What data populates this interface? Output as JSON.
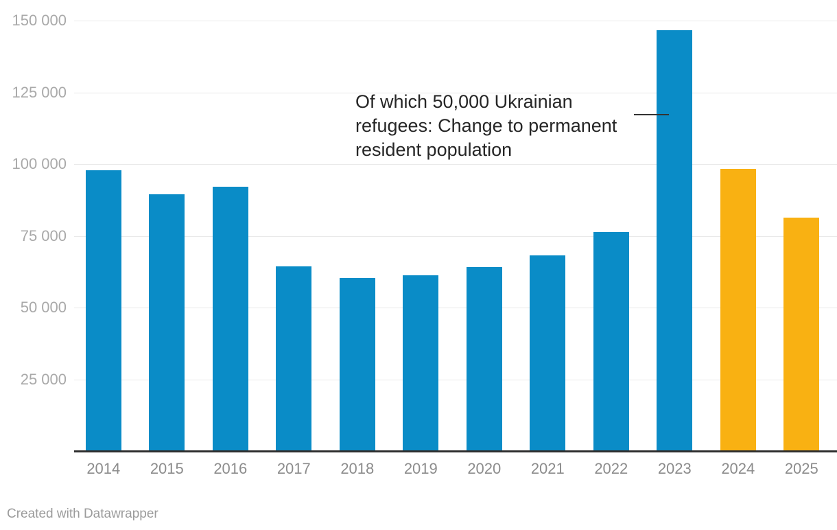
{
  "chart_data": {
    "type": "bar",
    "title": "",
    "xlabel": "",
    "ylabel": "",
    "categories": [
      "2014",
      "2015",
      "2016",
      "2017",
      "2018",
      "2019",
      "2020",
      "2021",
      "2022",
      "2023",
      "2024",
      "2025"
    ],
    "values": [
      97800,
      89400,
      92100,
      64300,
      60400,
      61200,
      64100,
      68100,
      76300,
      146700,
      98300,
      81300
    ],
    "ylim": [
      0,
      150000
    ],
    "yticks": [
      150000,
      125000,
      100000,
      75000,
      50000,
      25000
    ],
    "ytick_labels": [
      "150 000",
      "125 000",
      "100 000",
      "75 000",
      "50 000",
      "25 000"
    ],
    "grid": true,
    "legend": "none",
    "highlight_categories": [
      "2024",
      "2025"
    ],
    "colors": {
      "bar_default": "#0a8cc7",
      "bar_highlight": "#f9b112",
      "gridline": "#e9e9e9",
      "baseline": "#2e2e2e",
      "ytick_text": "#a9a9a9",
      "xtick_text": "#8c8c8c",
      "annotation_text": "#262626",
      "connector": "#333333",
      "credit_text": "#9b9b9b"
    },
    "annotation": {
      "lines": [
        "Of which 50,000 Ukrainian",
        "refugees: Change to permanent",
        "resident population"
      ],
      "target_category": "2023"
    }
  },
  "footer": {
    "credit": "Created with Datawrapper"
  }
}
